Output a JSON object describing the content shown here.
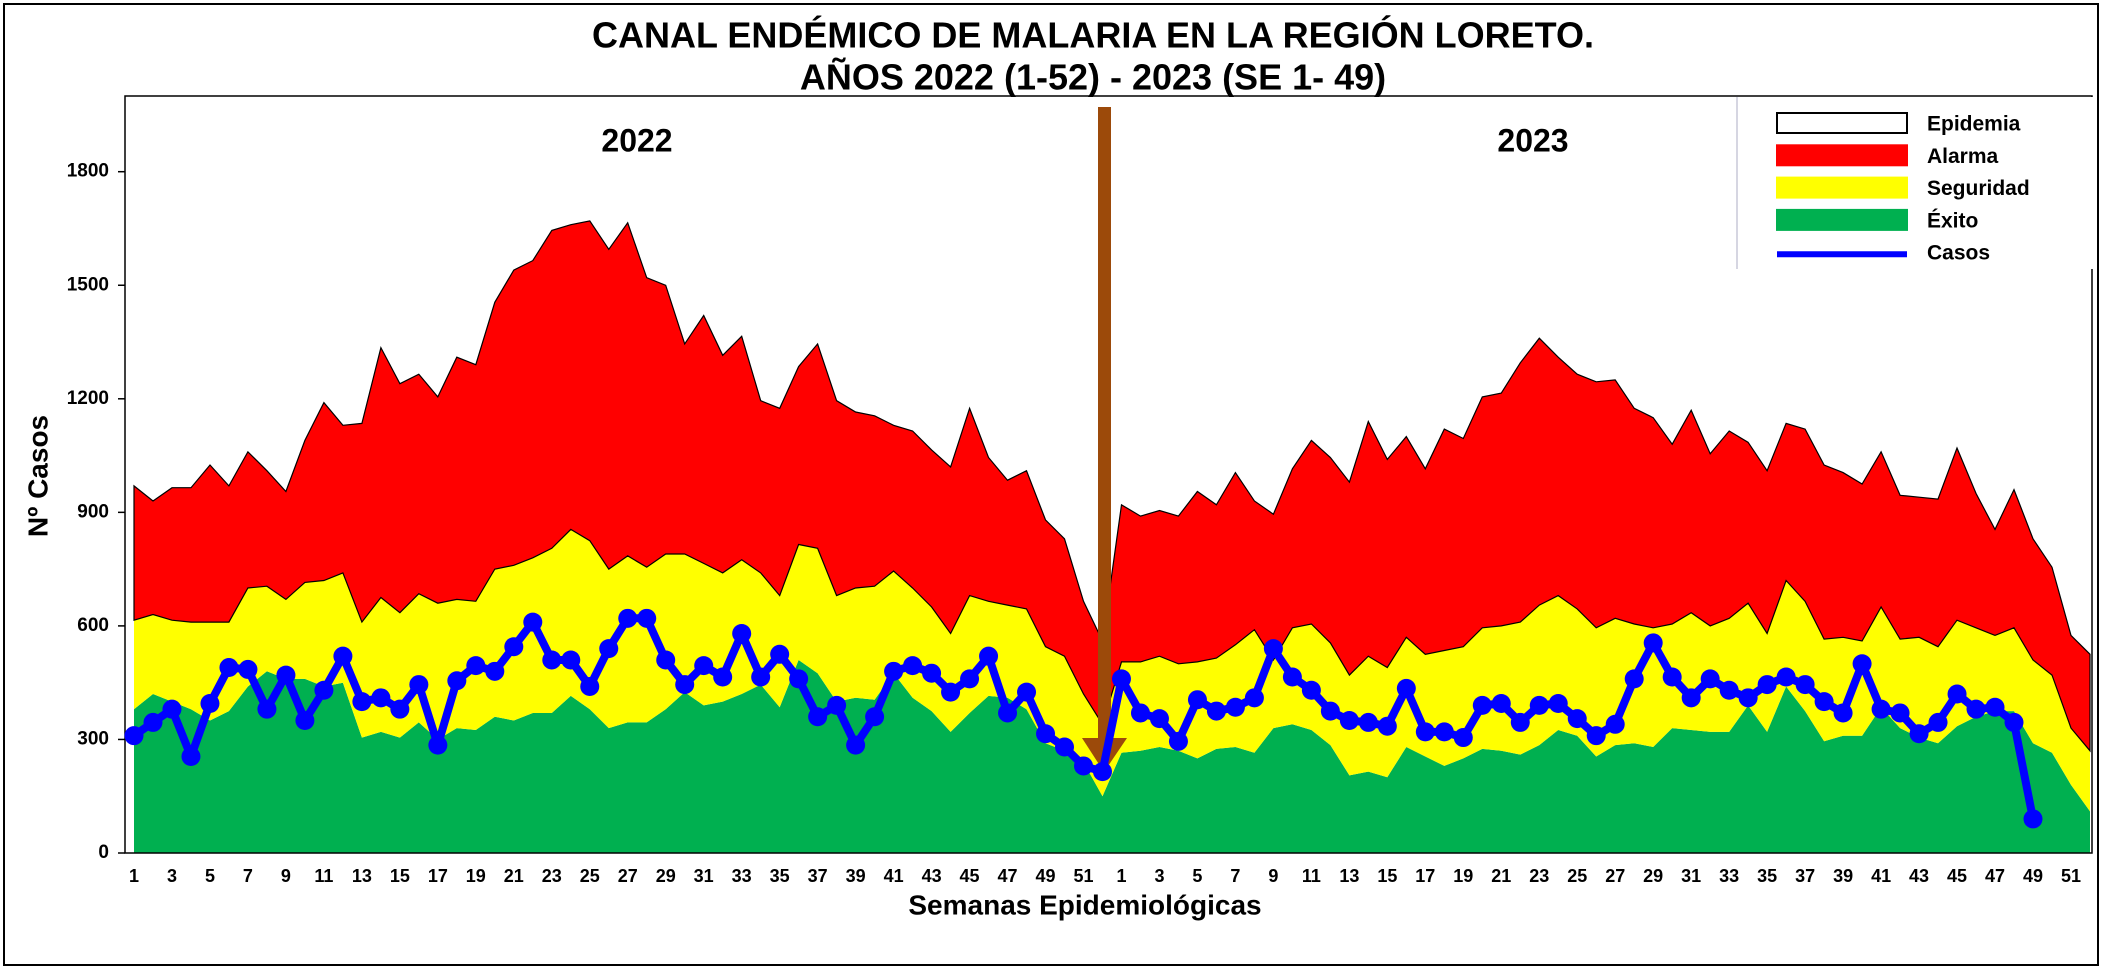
{
  "chart_data": {
    "type": "area",
    "stacked": true,
    "title": "CANAL ENDÉMICO  DE MALARIA  EN LA REGIÓN  LORETO.",
    "subtitle": "AÑOS  2022 (1-52)  - 2023 (SE 1- 49)",
    "x_label": "Semanas Epidemiológicas",
    "y_label": "Nº Casos",
    "annotations": [
      "2022",
      "2023"
    ],
    "categories": [
      "1",
      null,
      "3",
      null,
      "5",
      null,
      "7",
      null,
      "9",
      null,
      "11",
      null,
      "13",
      null,
      "15",
      null,
      "17",
      null,
      "19",
      null,
      "21",
      null,
      "23",
      null,
      "25",
      null,
      "27",
      null,
      "29",
      null,
      "31",
      null,
      "33",
      null,
      "35",
      null,
      "37",
      null,
      "39",
      null,
      "41",
      null,
      "43",
      null,
      "45",
      null,
      "47",
      null,
      "49",
      null,
      "51",
      null,
      "1",
      null,
      "3",
      null,
      "5",
      null,
      "7",
      null,
      "9",
      null,
      "11",
      null,
      "13",
      null,
      "15",
      null,
      "17",
      null,
      "19",
      null,
      "21",
      null,
      "23",
      null,
      "25",
      null,
      "27",
      null,
      "29",
      null,
      "31",
      null,
      "33",
      null,
      "35",
      null,
      "37",
      null,
      "39",
      null,
      "41",
      null,
      "43",
      null,
      "45",
      null,
      "47",
      null,
      "49",
      null,
      "51",
      null
    ],
    "ylim": [
      0,
      2000
    ],
    "yticks": [
      0,
      300,
      600,
      900,
      1200,
      1500,
      1800
    ],
    "legend": "top-right",
    "series": [
      {
        "name": "Epidemia",
        "color": "#ffffff"
      },
      {
        "name": "Alarma",
        "color": "#ff0000",
        "values": [
          355,
          300,
          350,
          355,
          415,
          360,
          360,
          305,
          285,
          375,
          470,
          390,
          525,
          660,
          605,
          580,
          545,
          640,
          625,
          705,
          780,
          785,
          840,
          805,
          845,
          845,
          880,
          765,
          710,
          555,
          655,
          575,
          590,
          455,
          495,
          470,
          540,
          515,
          465,
          450,
          385,
          415,
          415,
          440,
          495,
          380,
          330,
          365,
          335,
          310,
          245,
          220,
          415,
          385,
          385,
          390,
          450,
          405,
          455,
          340,
          385,
          420,
          485,
          490,
          510,
          620,
          550,
          530,
          490,
          585,
          550,
          610,
          615,
          685,
          705,
          630,
          620,
          650,
          630,
          570,
          555,
          475,
          535,
          455,
          495,
          425,
          430,
          415,
          455,
          460,
          435,
          415,
          410,
          380,
          370,
          390,
          455,
          355,
          280,
          365,
          320,
          285,
          245,
          255
        ]
      },
      {
        "name": "Seguridad",
        "color": "#ffff00",
        "values": [
          235,
          210,
          215,
          230,
          260,
          235,
          260,
          225,
          210,
          255,
          280,
          290,
          305,
          355,
          330,
          340,
          360,
          340,
          340,
          390,
          410,
          410,
          435,
          440,
          445,
          420,
          440,
          410,
          410,
          365,
          375,
          340,
          355,
          295,
          295,
          305,
          330,
          280,
          290,
          300,
          270,
          290,
          275,
          260,
          310,
          250,
          245,
          265,
          255,
          250,
          180,
          190,
          240,
          235,
          240,
          230,
          255,
          240,
          270,
          325,
          180,
          255,
          280,
          270,
          265,
          305,
          290,
          290,
          270,
          305,
          295,
          320,
          330,
          350,
          370,
          355,
          335,
          340,
          335,
          315,
          315,
          275,
          310,
          280,
          300,
          270,
          260,
          280,
          290,
          270,
          260,
          250,
          265,
          235,
          265,
          255,
          280,
          235,
          200,
          220,
          220,
          205,
          150,
          160
        ]
      },
      {
        "name": "Éxito",
        "color": "#00b050",
        "values": [
          380,
          420,
          400,
          380,
          350,
          375,
          440,
          480,
          460,
          460,
          440,
          450,
          305,
          320,
          305,
          345,
          300,
          330,
          325,
          360,
          350,
          370,
          370,
          415,
          380,
          330,
          345,
          345,
          380,
          425,
          390,
          400,
          420,
          445,
          385,
          510,
          475,
          400,
          410,
          405,
          475,
          410,
          375,
          320,
          370,
          415,
          410,
          380,
          290,
          270,
          240,
          150,
          265,
          270,
          280,
          270,
          250,
          275,
          280,
          265,
          330,
          340,
          325,
          285,
          205,
          215,
          200,
          280,
          255,
          230,
          250,
          275,
          270,
          260,
          285,
          325,
          310,
          255,
          285,
          290,
          280,
          330,
          325,
          320,
          320,
          390,
          320,
          440,
          375,
          295,
          310,
          310,
          385,
          330,
          305,
          290,
          335,
          360,
          375,
          375,
          290,
          265,
          180,
          110
        ]
      },
      {
        "name": "Casos",
        "type": "line",
        "color": "#0000ff",
        "values": [
          310,
          345,
          380,
          255,
          395,
          490,
          485,
          380,
          470,
          350,
          430,
          520,
          400,
          410,
          380,
          445,
          285,
          455,
          495,
          480,
          545,
          610,
          510,
          510,
          440,
          540,
          620,
          620,
          510,
          445,
          495,
          465,
          580,
          465,
          525,
          460,
          360,
          390,
          285,
          360,
          480,
          495,
          475,
          425,
          460,
          520,
          370,
          425,
          315,
          280,
          230,
          215,
          460,
          370,
          355,
          295,
          405,
          375,
          385,
          410,
          540,
          465,
          430,
          375,
          350,
          345,
          335,
          435,
          320,
          320,
          305,
          390,
          395,
          345,
          390,
          395,
          355,
          310,
          340,
          460,
          555,
          465,
          410,
          460,
          430,
          410,
          445,
          465,
          445,
          400,
          370,
          500,
          380,
          370,
          315,
          345,
          420,
          380,
          385,
          345,
          90,
          null,
          null,
          null
        ]
      }
    ]
  }
}
